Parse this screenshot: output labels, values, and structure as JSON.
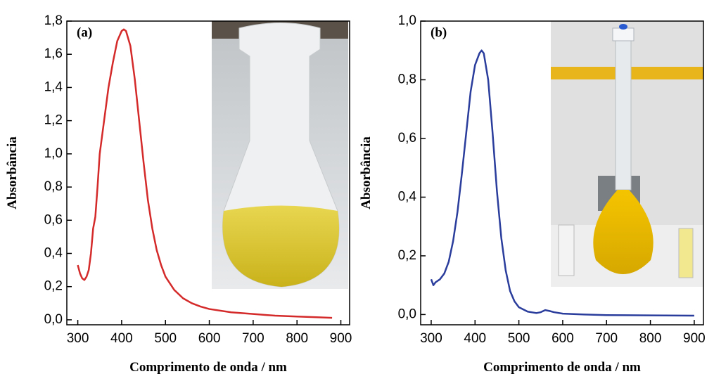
{
  "chart_data": [
    {
      "type": "line",
      "panel_label": "(a)",
      "x_label": "Comprimento de onda / nm",
      "y_label": "Absorbância",
      "xlim": [
        275,
        920
      ],
      "ylim": [
        -0.03,
        1.8
      ],
      "xticks": [
        300,
        400,
        500,
        600,
        700,
        800,
        900
      ],
      "yticks": [
        {
          "value": 0,
          "label": "0,0"
        },
        {
          "value": 0.2,
          "label": "0,2"
        },
        {
          "value": 0.4,
          "label": "0,4"
        },
        {
          "value": 0.6,
          "label": "0,6"
        },
        {
          "value": 0.8,
          "label": "0,8"
        },
        {
          "value": 1.0,
          "label": "1,0"
        },
        {
          "value": 1.2,
          "label": "1,2"
        },
        {
          "value": 1.4,
          "label": "1,4"
        },
        {
          "value": 1.6,
          "label": "1,6"
        },
        {
          "value": 1.8,
          "label": "1,8"
        }
      ],
      "series": [
        {
          "color": "#d42a2a",
          "x": [
            300,
            305,
            310,
            315,
            320,
            325,
            330,
            335,
            340,
            345,
            350,
            355,
            360,
            370,
            380,
            390,
            400,
            405,
            410,
            420,
            430,
            440,
            450,
            460,
            470,
            480,
            490,
            500,
            520,
            540,
            560,
            580,
            600,
            650,
            700,
            750,
            800,
            850,
            880
          ],
          "values": [
            0.33,
            0.28,
            0.25,
            0.24,
            0.26,
            0.3,
            0.4,
            0.55,
            0.62,
            0.8,
            1.0,
            1.1,
            1.2,
            1.4,
            1.55,
            1.68,
            1.74,
            1.75,
            1.74,
            1.65,
            1.45,
            1.2,
            0.95,
            0.72,
            0.55,
            0.42,
            0.33,
            0.26,
            0.18,
            0.13,
            0.1,
            0.08,
            0.065,
            0.045,
            0.035,
            0.025,
            0.02,
            0.015,
            0.012
          ]
        }
      ]
    },
    {
      "type": "line",
      "panel_label": "(b)",
      "x_label": "Comprimento de onda / nm",
      "y_label": "Absorbância",
      "xlim": [
        276,
        921
      ],
      "ylim": [
        -0.035,
        1.0
      ],
      "xticks": [
        300,
        400,
        500,
        600,
        700,
        800,
        900
      ],
      "yticks": [
        {
          "value": 0,
          "label": "0,0"
        },
        {
          "value": 0.2,
          "label": "0,2"
        },
        {
          "value": 0.4,
          "label": "0,4"
        },
        {
          "value": 0.6,
          "label": "0,6"
        },
        {
          "value": 0.8,
          "label": "0,8"
        },
        {
          "value": 1.0,
          "label": "1,0"
        }
      ],
      "series": [
        {
          "color": "#2a3d9c",
          "x": [
            300,
            305,
            310,
            320,
            330,
            340,
            350,
            360,
            370,
            380,
            390,
            400,
            410,
            415,
            420,
            430,
            440,
            450,
            460,
            470,
            480,
            490,
            500,
            520,
            540,
            550,
            560,
            570,
            580,
            600,
            650,
            700,
            800,
            900
          ],
          "values": [
            0.12,
            0.1,
            0.11,
            0.12,
            0.14,
            0.18,
            0.25,
            0.35,
            0.48,
            0.62,
            0.76,
            0.85,
            0.89,
            0.9,
            0.89,
            0.8,
            0.62,
            0.42,
            0.26,
            0.15,
            0.08,
            0.045,
            0.025,
            0.01,
            0.005,
            0.008,
            0.015,
            0.012,
            0.008,
            0.003,
            0,
            -0.002,
            -0.003,
            -0.004
          ]
        }
      ]
    }
  ]
}
